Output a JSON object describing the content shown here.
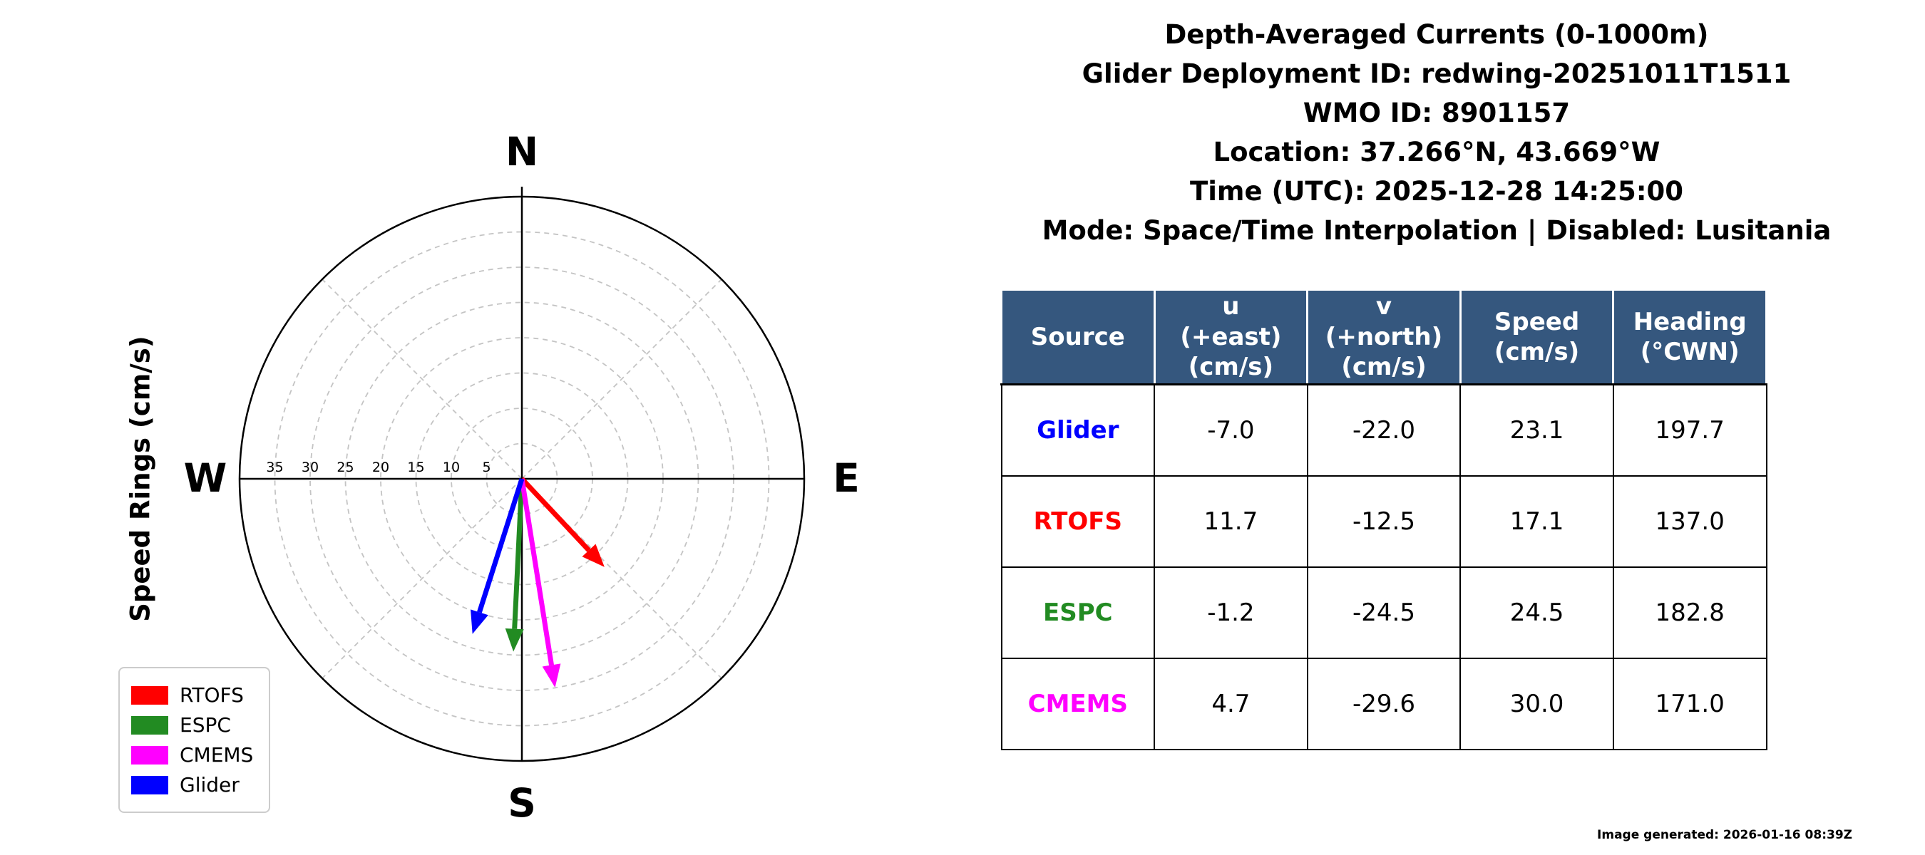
{
  "header": {
    "title_lines": [
      "Depth-Averaged Currents (0-1000m)",
      "Glider Deployment ID: redwing-20251011T1511",
      "WMO ID: 8901157",
      "Location: 37.266°N, 43.669°W",
      "Time (UTC): 2025-12-28 14:25:00",
      "Mode: Space/Time Interpolation | Disabled: Lusitania"
    ]
  },
  "chart_data": {
    "type": "scatter",
    "subtype": "polar-vector-compass",
    "axis_label": "Speed Rings (cm/s)",
    "compass_labels": {
      "north": "N",
      "east": "E",
      "south": "S",
      "west": "W"
    },
    "ring_step": 5,
    "ring_max": 40,
    "ring_tick_labels": [
      "35",
      "30",
      "25",
      "20",
      "15",
      "10",
      "5"
    ],
    "grid": "dashed-gray",
    "legend_position": "lower-left",
    "vectors": [
      {
        "name": "RTOFS",
        "u": 11.7,
        "v": -12.5,
        "speed": 17.1,
        "heading_deg_cwn": 137.0,
        "color": "#ff0000"
      },
      {
        "name": "ESPC",
        "u": -1.2,
        "v": -24.5,
        "speed": 24.5,
        "heading_deg_cwn": 182.8,
        "color": "#228b22"
      },
      {
        "name": "CMEMS",
        "u": 4.7,
        "v": -29.6,
        "speed": 30.0,
        "heading_deg_cwn": 171.0,
        "color": "#ff00ff"
      },
      {
        "name": "Glider",
        "u": -7.0,
        "v": -22.0,
        "speed": 23.1,
        "heading_deg_cwn": 197.7,
        "color": "#0000ff"
      }
    ]
  },
  "table": {
    "header_bg": "#35577e",
    "headers": [
      "Source",
      "u\n(+east)\n(cm/s)",
      "v\n(+north)\n(cm/s)",
      "Speed\n(cm/s)",
      "Heading\n(°CWN)"
    ],
    "rows": [
      {
        "source": "Glider",
        "color": "#0000ff",
        "u": "-7.0",
        "v": "-22.0",
        "speed": "23.1",
        "heading": "197.7"
      },
      {
        "source": "RTOFS",
        "color": "#ff0000",
        "u": "11.7",
        "v": "-12.5",
        "speed": "17.1",
        "heading": "137.0"
      },
      {
        "source": "ESPC",
        "color": "#228b22",
        "u": "-1.2",
        "v": "-24.5",
        "speed": "24.5",
        "heading": "182.8"
      },
      {
        "source": "CMEMS",
        "color": "#ff00ff",
        "u": "4.7",
        "v": "-29.6",
        "speed": "30.0",
        "heading": "171.0"
      }
    ]
  },
  "footer": {
    "generated": "Image generated: 2026-01-16 08:39Z"
  }
}
